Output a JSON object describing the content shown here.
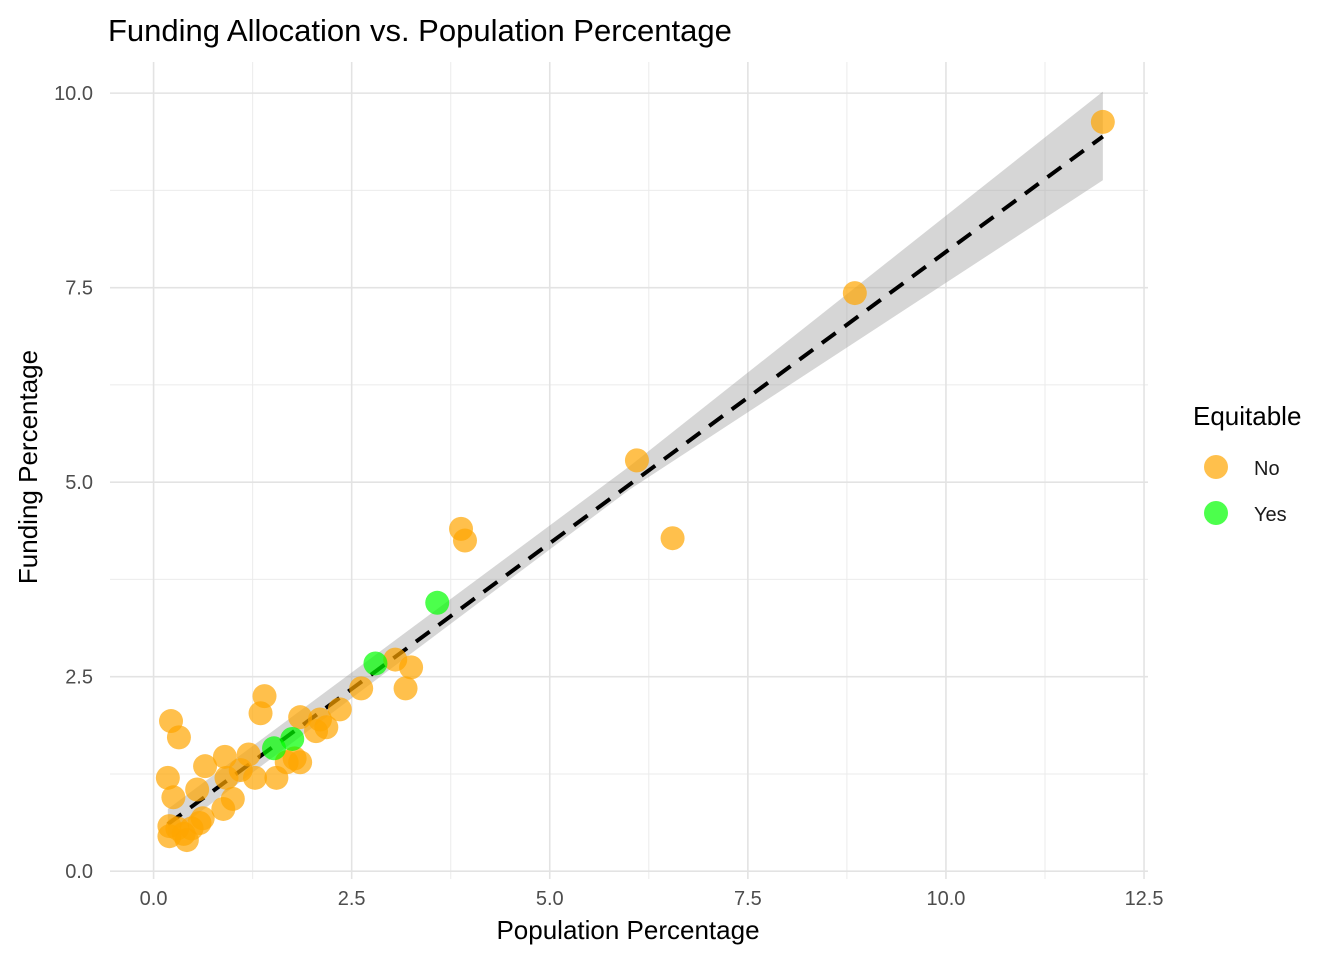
{
  "chart_data": {
    "type": "scatter",
    "title": "Funding Allocation vs. Population Percentage",
    "xlabel": "Population Percentage",
    "ylabel": "Funding Percentage",
    "xlim": [
      -0.55,
      12.55
    ],
    "ylim": [
      -0.1,
      10.4
    ],
    "x_ticks": [
      0.0,
      2.5,
      5.0,
      7.5,
      10.0,
      12.5
    ],
    "x_tick_labels": [
      "0.0",
      "2.5",
      "5.0",
      "7.5",
      "10.0",
      "12.5"
    ],
    "y_ticks": [
      0.0,
      2.5,
      5.0,
      7.5,
      10.0
    ],
    "y_tick_labels": [
      "0.0",
      "2.5",
      "5.0",
      "7.5",
      "10.0"
    ],
    "grid": true,
    "legend": {
      "title": "Equitable",
      "position": "right",
      "entries": [
        {
          "label": "No",
          "color": "#ffa500"
        },
        {
          "label": "Yes",
          "color": "#00ff00"
        }
      ]
    },
    "series": [
      {
        "name": "No",
        "color": "#ffa500",
        "points": [
          [
            0.18,
            1.2
          ],
          [
            0.2,
            0.45
          ],
          [
            0.2,
            0.58
          ],
          [
            0.22,
            1.93
          ],
          [
            0.25,
            0.95
          ],
          [
            0.3,
            0.55
          ],
          [
            0.32,
            1.72
          ],
          [
            0.38,
            0.48
          ],
          [
            0.42,
            0.4
          ],
          [
            0.48,
            0.55
          ],
          [
            0.55,
            1.05
          ],
          [
            0.58,
            0.62
          ],
          [
            0.62,
            0.68
          ],
          [
            0.65,
            1.35
          ],
          [
            0.88,
            0.8
          ],
          [
            0.9,
            1.47
          ],
          [
            0.92,
            1.2
          ],
          [
            1.0,
            0.93
          ],
          [
            1.1,
            1.3
          ],
          [
            1.2,
            1.5
          ],
          [
            1.28,
            1.2
          ],
          [
            1.35,
            2.03
          ],
          [
            1.4,
            2.25
          ],
          [
            1.55,
            1.2
          ],
          [
            1.68,
            1.4
          ],
          [
            1.78,
            1.45
          ],
          [
            1.85,
            1.4
          ],
          [
            1.85,
            1.98
          ],
          [
            2.05,
            1.8
          ],
          [
            2.1,
            1.95
          ],
          [
            2.18,
            1.85
          ],
          [
            2.35,
            2.08
          ],
          [
            2.62,
            2.35
          ],
          [
            3.05,
            2.72
          ],
          [
            3.18,
            2.35
          ],
          [
            3.25,
            2.62
          ],
          [
            3.88,
            4.4
          ],
          [
            3.93,
            4.25
          ],
          [
            6.1,
            5.28
          ],
          [
            6.55,
            4.28
          ],
          [
            8.85,
            7.43
          ],
          [
            11.98,
            9.63
          ]
        ]
      },
      {
        "name": "Yes",
        "color": "#00ff00",
        "points": [
          [
            1.52,
            1.58
          ],
          [
            1.75,
            1.7
          ],
          [
            2.8,
            2.67
          ],
          [
            3.58,
            3.45
          ]
        ]
      }
    ],
    "trend_line": {
      "style": "dashed",
      "color": "#000000",
      "x_range": [
        0.18,
        11.98
      ],
      "intercept": 0.47,
      "slope": 0.749
    },
    "confidence_band": {
      "color": "#999999",
      "lower": [
        [
          0.18,
          0.45
        ],
        [
          6.0,
          4.9
        ],
        [
          11.98,
          8.88
        ]
      ],
      "upper": [
        [
          0.18,
          0.8
        ],
        [
          6.0,
          5.2
        ],
        [
          11.98,
          10.02
        ]
      ]
    }
  }
}
